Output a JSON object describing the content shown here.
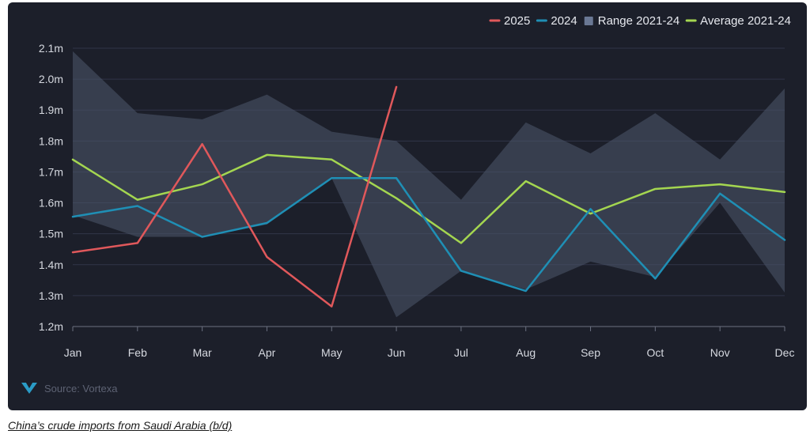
{
  "chart_data": {
    "type": "line",
    "categories": [
      "Jan",
      "Feb",
      "Mar",
      "Apr",
      "May",
      "Jun",
      "Jul",
      "Aug",
      "Sep",
      "Oct",
      "Nov",
      "Dec"
    ],
    "ylim": [
      1.2,
      2.1
    ],
    "y_ticks": [
      1.2,
      1.3,
      1.4,
      1.5,
      1.6,
      1.7,
      1.8,
      1.9,
      2.0,
      2.1
    ],
    "y_tick_labels": [
      "1.2m",
      "1.3m",
      "1.4m",
      "1.5m",
      "1.6m",
      "1.7m",
      "1.8m",
      "1.9m",
      "2.0m",
      "2.1m"
    ],
    "grid": true,
    "legend_position": "top-right",
    "range": {
      "name": "Range 2021-24",
      "color": "#4a5468",
      "upper": [
        2.09,
        1.89,
        1.87,
        1.95,
        1.83,
        1.8,
        1.61,
        1.86,
        1.76,
        1.89,
        1.74,
        1.97
      ],
      "lower": [
        1.56,
        1.49,
        1.49,
        1.53,
        1.68,
        1.23,
        1.38,
        1.32,
        1.41,
        1.36,
        1.6,
        1.31
      ]
    },
    "series": [
      {
        "name": "Average 2021-24",
        "color": "#a4d650",
        "values": [
          1.74,
          1.61,
          1.66,
          1.755,
          1.74,
          1.615,
          1.47,
          1.67,
          1.565,
          1.645,
          1.66,
          1.635
        ]
      },
      {
        "name": "2024",
        "color": "#1f8fb5",
        "values": [
          1.555,
          1.59,
          1.49,
          1.535,
          1.68,
          1.68,
          1.38,
          1.315,
          1.58,
          1.355,
          1.63,
          1.48
        ]
      },
      {
        "name": "2025",
        "color": "#e0585b",
        "values": [
          1.44,
          1.47,
          1.79,
          1.425,
          1.265,
          1.975,
          null,
          null,
          null,
          null,
          null,
          null
        ]
      }
    ],
    "legend": [
      {
        "label": "2025",
        "color": "#e0585b",
        "shape": "line"
      },
      {
        "label": "2024",
        "color": "#1f8fb5",
        "shape": "line"
      },
      {
        "label": "Range 2021-24",
        "color": "#6a7894",
        "shape": "square"
      },
      {
        "label": "Average 2021-24",
        "color": "#a4d650",
        "shape": "line"
      }
    ]
  },
  "source_text": "Source: Vortexa",
  "caption": "China’s crude imports from Saudi Arabia (b/d)"
}
